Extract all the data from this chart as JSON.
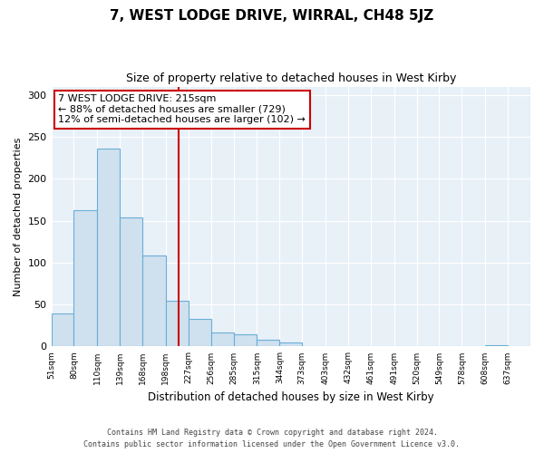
{
  "title": "7, WEST LODGE DRIVE, WIRRAL, CH48 5JZ",
  "subtitle": "Size of property relative to detached houses in West Kirby",
  "xlabel": "Distribution of detached houses by size in West Kirby",
  "ylabel": "Number of detached properties",
  "bin_labels": [
    "51sqm",
    "80sqm",
    "110sqm",
    "139sqm",
    "168sqm",
    "198sqm",
    "227sqm",
    "256sqm",
    "285sqm",
    "315sqm",
    "344sqm",
    "373sqm",
    "403sqm",
    "432sqm",
    "461sqm",
    "491sqm",
    "520sqm",
    "549sqm",
    "578sqm",
    "608sqm",
    "637sqm"
  ],
  "bin_edges": [
    51,
    80,
    110,
    139,
    168,
    198,
    227,
    256,
    285,
    315,
    344,
    373,
    403,
    432,
    461,
    491,
    520,
    549,
    578,
    608,
    637,
    666
  ],
  "bar_heights": [
    39,
    163,
    236,
    154,
    109,
    55,
    33,
    17,
    14,
    8,
    5,
    1,
    0,
    1,
    0,
    0,
    0,
    0,
    0,
    2,
    0
  ],
  "bar_color": "#cfe0ef",
  "bar_edge_color": "#6aaed6",
  "property_value": 215,
  "vline_color": "#cc0000",
  "annotation_text": "7 WEST LODGE DRIVE: 215sqm\n← 88% of detached houses are smaller (729)\n12% of semi-detached houses are larger (102) →",
  "annotation_box_color": "#ffffff",
  "annotation_box_edge_color": "#cc0000",
  "ylim": [
    0,
    310
  ],
  "yticks": [
    0,
    50,
    100,
    150,
    200,
    250,
    300
  ],
  "footer_line1": "Contains HM Land Registry data © Crown copyright and database right 2024.",
  "footer_line2": "Contains public sector information licensed under the Open Government Licence v3.0.",
  "background_color": "#ffffff",
  "plot_bg_color": "#e8f0f8"
}
